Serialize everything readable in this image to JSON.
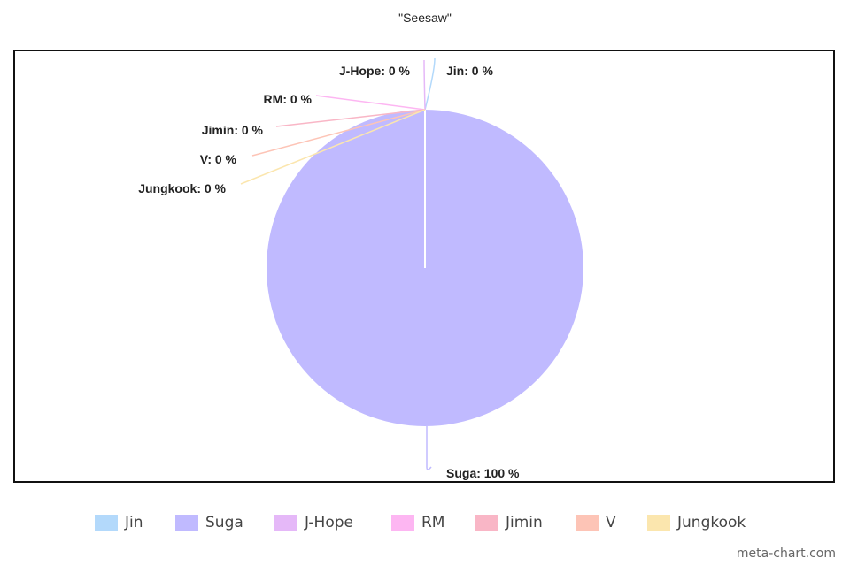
{
  "chart_data": {
    "type": "pie",
    "title": "\"Seesaw\"",
    "slices": [
      {
        "name": "Jin",
        "value": 0,
        "label": "Jin: 0 %",
        "color": "#b3d9fb"
      },
      {
        "name": "Suga",
        "value": 100,
        "label": "Suga: 100 %",
        "color": "#c0baff"
      },
      {
        "name": "J-Hope",
        "value": 0,
        "label": "J-Hope: 0 %",
        "color": "#e5b8f8"
      },
      {
        "name": "RM",
        "value": 0,
        "label": "RM: 0 %",
        "color": "#fdb6f2"
      },
      {
        "name": "Jimin",
        "value": 0,
        "label": "Jimin: 0 %",
        "color": "#f9b6c6"
      },
      {
        "name": "V",
        "value": 0,
        "label": "V: 0 %",
        "color": "#fdc4b6"
      },
      {
        "name": "Jungkook",
        "value": 0,
        "label": "Jungkook: 0 %",
        "color": "#fbe6ae"
      }
    ],
    "legend_position": "bottom"
  },
  "watermark": "meta-chart.com"
}
